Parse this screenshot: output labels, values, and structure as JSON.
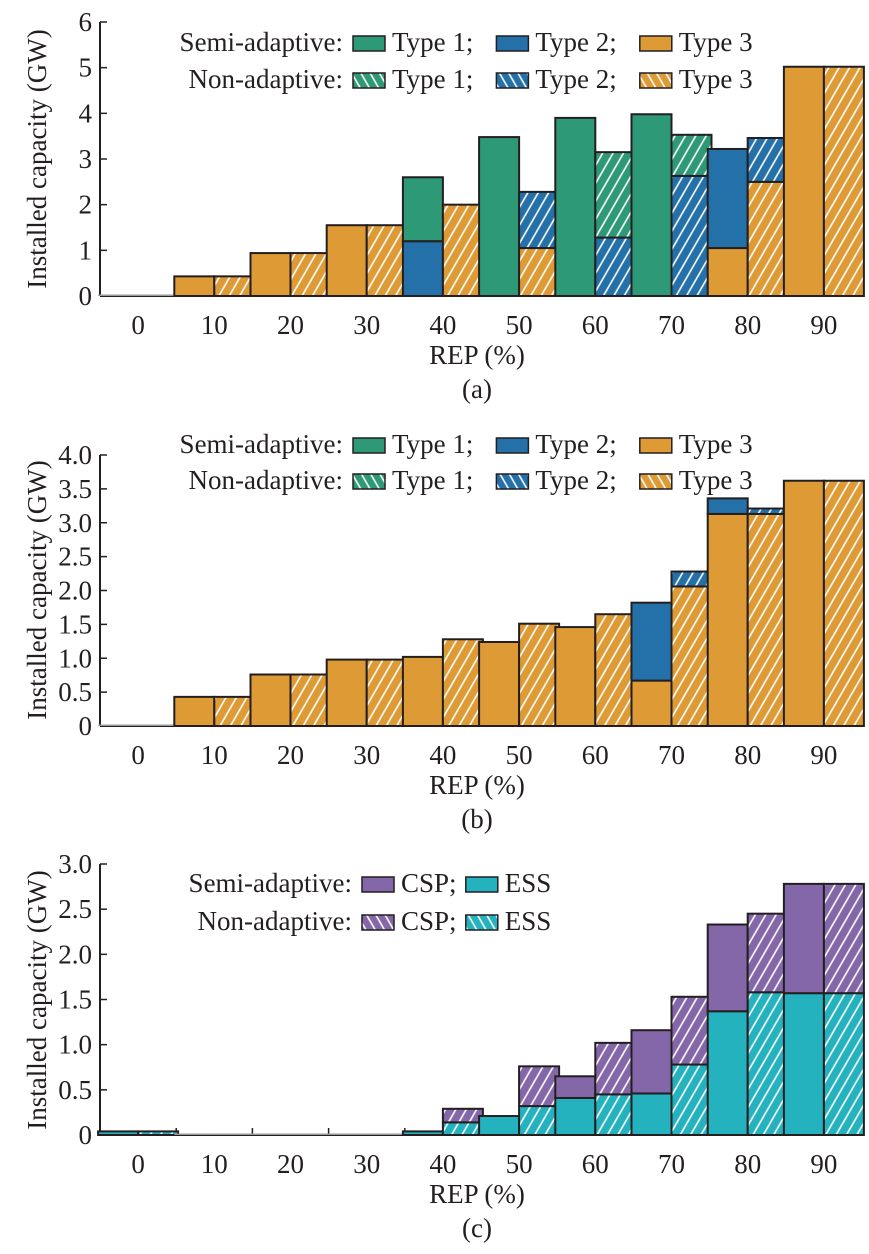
{
  "colors": {
    "type1": "#2e9977",
    "type2": "#2470a8",
    "type3": "#de9a35",
    "csp": "#8467a8",
    "ess": "#25b2bf",
    "axis": "#231f20"
  },
  "chart_data": [
    {
      "id": "a",
      "type": "bar",
      "stacked": true,
      "grouped": true,
      "caption": "(a)",
      "xlabel": "REP (%)",
      "ylabel": "Installed capacity (GW)",
      "ylim": [
        0,
        6
      ],
      "yticks": [
        "0",
        "1",
        "2",
        "3",
        "4",
        "5",
        "6"
      ],
      "yticks_values": [
        0,
        1,
        2,
        3,
        4,
        5,
        6
      ],
      "categories": [
        "0",
        "10",
        "20",
        "30",
        "40",
        "50",
        "60",
        "70",
        "80",
        "90"
      ],
      "groups": [
        "Semi-adaptive",
        "Non-adaptive"
      ],
      "stack_keys": [
        "Type 3",
        "Type 2",
        "Type 1"
      ],
      "stack_colors": [
        "type3",
        "type2",
        "type1"
      ],
      "legend": {
        "placement": "top",
        "rows": [
          {
            "label": "Semi-adaptive:",
            "hatched": false,
            "items": [
              "Type 1;",
              "Type 2;",
              "Type 3"
            ],
            "colors": [
              "type1",
              "type2",
              "type3"
            ]
          },
          {
            "label": "Non-adaptive:",
            "hatched": true,
            "items": [
              "Type 1;",
              "Type 2;",
              "Type 3"
            ],
            "colors": [
              "type1",
              "type2",
              "type3"
            ]
          }
        ]
      },
      "series": [
        {
          "name": "Semi-adaptive Type 3",
          "group": "Semi-adaptive",
          "key": "Type 3",
          "values": [
            0,
            0.43,
            0.94,
            1.55,
            0,
            0,
            0,
            0,
            1.05,
            5.02
          ]
        },
        {
          "name": "Semi-adaptive Type 2",
          "group": "Semi-adaptive",
          "key": "Type 2",
          "values": [
            0,
            0,
            0,
            0,
            1.2,
            0,
            0,
            0,
            2.17,
            0
          ]
        },
        {
          "name": "Semi-adaptive Type 1",
          "group": "Semi-adaptive",
          "key": "Type 1",
          "values": [
            0,
            0,
            0,
            0,
            1.4,
            3.48,
            3.9,
            3.98,
            0,
            0
          ]
        },
        {
          "name": "Non-adaptive Type 3",
          "group": "Non-adaptive",
          "key": "Type 3",
          "values": [
            0,
            0.43,
            0.94,
            1.55,
            2.0,
            1.05,
            0,
            0,
            2.5,
            5.02
          ]
        },
        {
          "name": "Non-adaptive Type 2",
          "group": "Non-adaptive",
          "key": "Type 2",
          "values": [
            0,
            0,
            0,
            0,
            0,
            1.23,
            1.28,
            2.63,
            0.96,
            0
          ]
        },
        {
          "name": "Non-adaptive Type 1",
          "group": "Non-adaptive",
          "key": "Type 1",
          "values": [
            0,
            0,
            0,
            0,
            0,
            0,
            1.87,
            0.9,
            0,
            0
          ]
        }
      ]
    },
    {
      "id": "b",
      "type": "bar",
      "stacked": true,
      "grouped": true,
      "caption": "(b)",
      "xlabel": "REP (%)",
      "ylabel": "Installed capacity (GW)",
      "ylim": [
        0,
        4
      ],
      "yticks": [
        "0",
        "0.5",
        "1.0",
        "1.5",
        "2.0",
        "2.5",
        "3.0",
        "3.5",
        "4.0"
      ],
      "yticks_values": [
        0,
        0.5,
        1,
        1.5,
        2,
        2.5,
        3,
        3.5,
        4
      ],
      "categories": [
        "0",
        "10",
        "20",
        "30",
        "40",
        "50",
        "60",
        "70",
        "80",
        "90"
      ],
      "groups": [
        "Semi-adaptive",
        "Non-adaptive"
      ],
      "stack_keys": [
        "Type 3",
        "Type 2",
        "Type 1"
      ],
      "stack_colors": [
        "type3",
        "type2",
        "type1"
      ],
      "legend": {
        "placement": "top",
        "rows": [
          {
            "label": "Semi-adaptive:",
            "hatched": false,
            "items": [
              "Type 1;",
              "Type 2;",
              "Type 3"
            ],
            "colors": [
              "type1",
              "type2",
              "type3"
            ]
          },
          {
            "label": "Non-adaptive:",
            "hatched": true,
            "items": [
              "Type 1;",
              "Type 2;",
              "Type 3"
            ],
            "colors": [
              "type1",
              "type2",
              "type3"
            ]
          }
        ]
      },
      "series": [
        {
          "name": "Semi-adaptive Type 3",
          "group": "Semi-adaptive",
          "key": "Type 3",
          "values": [
            0,
            0.43,
            0.76,
            0.98,
            1.02,
            1.24,
            1.46,
            0.67,
            3.13,
            3.62
          ]
        },
        {
          "name": "Semi-adaptive Type 2",
          "group": "Semi-adaptive",
          "key": "Type 2",
          "values": [
            0,
            0,
            0,
            0,
            0,
            0,
            0,
            1.15,
            0.23,
            0
          ]
        },
        {
          "name": "Semi-adaptive Type 1",
          "group": "Semi-adaptive",
          "key": "Type 1",
          "values": [
            0,
            0,
            0,
            0,
            0,
            0,
            0,
            0,
            0,
            0
          ]
        },
        {
          "name": "Non-adaptive Type 3",
          "group": "Non-adaptive",
          "key": "Type 3",
          "values": [
            0,
            0.43,
            0.76,
            0.98,
            1.28,
            1.51,
            1.65,
            2.06,
            3.13,
            3.62
          ]
        },
        {
          "name": "Non-adaptive Type 2",
          "group": "Non-adaptive",
          "key": "Type 2",
          "values": [
            0,
            0,
            0,
            0,
            0,
            0,
            0,
            0.22,
            0.08,
            0
          ]
        },
        {
          "name": "Non-adaptive Type 1",
          "group": "Non-adaptive",
          "key": "Type 1",
          "values": [
            0,
            0,
            0,
            0,
            0,
            0,
            0,
            0,
            0,
            0
          ]
        }
      ]
    },
    {
      "id": "c",
      "type": "bar",
      "stacked": true,
      "grouped": true,
      "caption": "(c)",
      "xlabel": "REP (%)",
      "ylabel": "Installed capacity (GW)",
      "ylim": [
        0,
        3
      ],
      "yticks": [
        "0",
        "0.5",
        "1.0",
        "1.5",
        "2.0",
        "2.5",
        "3.0"
      ],
      "yticks_values": [
        0,
        0.5,
        1,
        1.5,
        2,
        2.5,
        3
      ],
      "categories": [
        "0",
        "10",
        "20",
        "30",
        "40",
        "50",
        "60",
        "70",
        "80",
        "90"
      ],
      "groups": [
        "Semi-adaptive",
        "Non-adaptive"
      ],
      "stack_keys": [
        "ESS",
        "CSP"
      ],
      "stack_colors": [
        "ess",
        "csp"
      ],
      "legend": {
        "placement": "top",
        "rows": [
          {
            "label": "Semi-adaptive:",
            "hatched": false,
            "items": [
              "CSP;",
              "ESS"
            ],
            "colors": [
              "csp",
              "ess"
            ]
          },
          {
            "label": "Non-adaptive:",
            "hatched": true,
            "items": [
              "CSP;",
              "ESS"
            ],
            "colors": [
              "csp",
              "ess"
            ]
          }
        ]
      },
      "series": [
        {
          "name": "Semi-adaptive ESS",
          "group": "Semi-adaptive",
          "key": "ESS",
          "values": [
            0.04,
            0,
            0,
            0,
            0.04,
            0.21,
            0.41,
            0.46,
            1.37,
            1.57
          ]
        },
        {
          "name": "Semi-adaptive CSP",
          "group": "Semi-adaptive",
          "key": "CSP",
          "values": [
            0,
            0,
            0,
            0,
            0,
            0,
            0.24,
            0.7,
            0.96,
            1.21
          ]
        },
        {
          "name": "Non-adaptive ESS",
          "group": "Non-adaptive",
          "key": "ESS",
          "values": [
            0.04,
            0,
            0,
            0,
            0.14,
            0.32,
            0.45,
            0.78,
            1.58,
            1.57
          ]
        },
        {
          "name": "Non-adaptive CSP",
          "group": "Non-adaptive",
          "key": "CSP",
          "values": [
            0,
            0,
            0,
            0,
            0.15,
            0.44,
            0.57,
            0.75,
            0.87,
            1.21
          ]
        }
      ]
    }
  ]
}
